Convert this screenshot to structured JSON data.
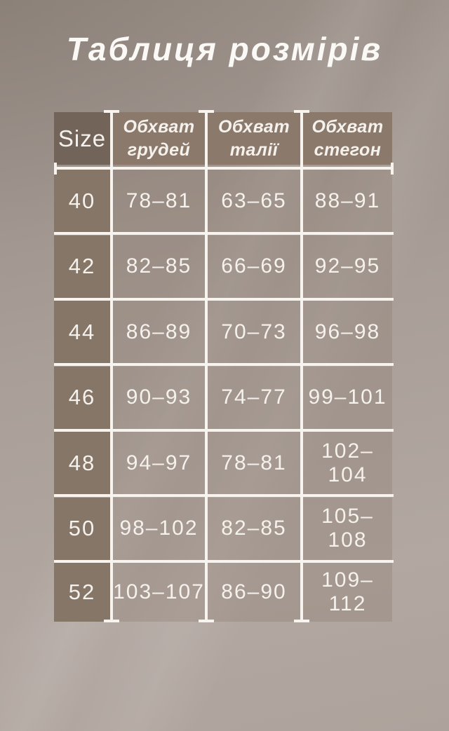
{
  "page": {
    "title": "Таблиця розмірів"
  },
  "table": {
    "size_header": "Size",
    "column_headers": {
      "chest": "Обхват грудей",
      "waist": "Обхват талії",
      "hips": "Обхват стегон"
    },
    "rows": [
      {
        "size": "40",
        "chest": "78–81",
        "waist": "63–65",
        "hips": "88–91"
      },
      {
        "size": "42",
        "chest": "82–85",
        "waist": "66–69",
        "hips": "92–95"
      },
      {
        "size": "44",
        "chest": "86–89",
        "waist": "70–73",
        "hips": "96–98"
      },
      {
        "size": "46",
        "chest": "90–93",
        "waist": "74–77",
        "hips": "99–101"
      },
      {
        "size": "48",
        "chest": "94–97",
        "waist": "78–81",
        "hips": "102–104"
      },
      {
        "size": "50",
        "chest": "98–102",
        "waist": "82–85",
        "hips": "105–108"
      },
      {
        "size": "52",
        "chest": "103–107",
        "waist": "86–90",
        "hips": "109–112"
      }
    ]
  },
  "chart_data": {
    "type": "table",
    "title": "Таблиця розмірів",
    "columns": [
      "Size",
      "Обхват грудей",
      "Обхват талії",
      "Обхват стегон"
    ],
    "rows": [
      [
        "40",
        "78–81",
        "63–65",
        "88–91"
      ],
      [
        "42",
        "82–85",
        "66–69",
        "92–95"
      ],
      [
        "44",
        "86–89",
        "70–73",
        "96–98"
      ],
      [
        "46",
        "90–93",
        "74–77",
        "99–101"
      ],
      [
        "48",
        "94–97",
        "78–81",
        "102–104"
      ],
      [
        "50",
        "98–102",
        "82–85",
        "105–108"
      ],
      [
        "52",
        "103–107",
        "86–90",
        "109–112"
      ]
    ]
  },
  "colors": {
    "background": "#a99e98",
    "header_size_cell": "#726458",
    "header_cells": "#8b7a6c",
    "size_column_cells": "#857668",
    "rule_lines": "#f7f4f0",
    "text": "#f5f1ec"
  }
}
